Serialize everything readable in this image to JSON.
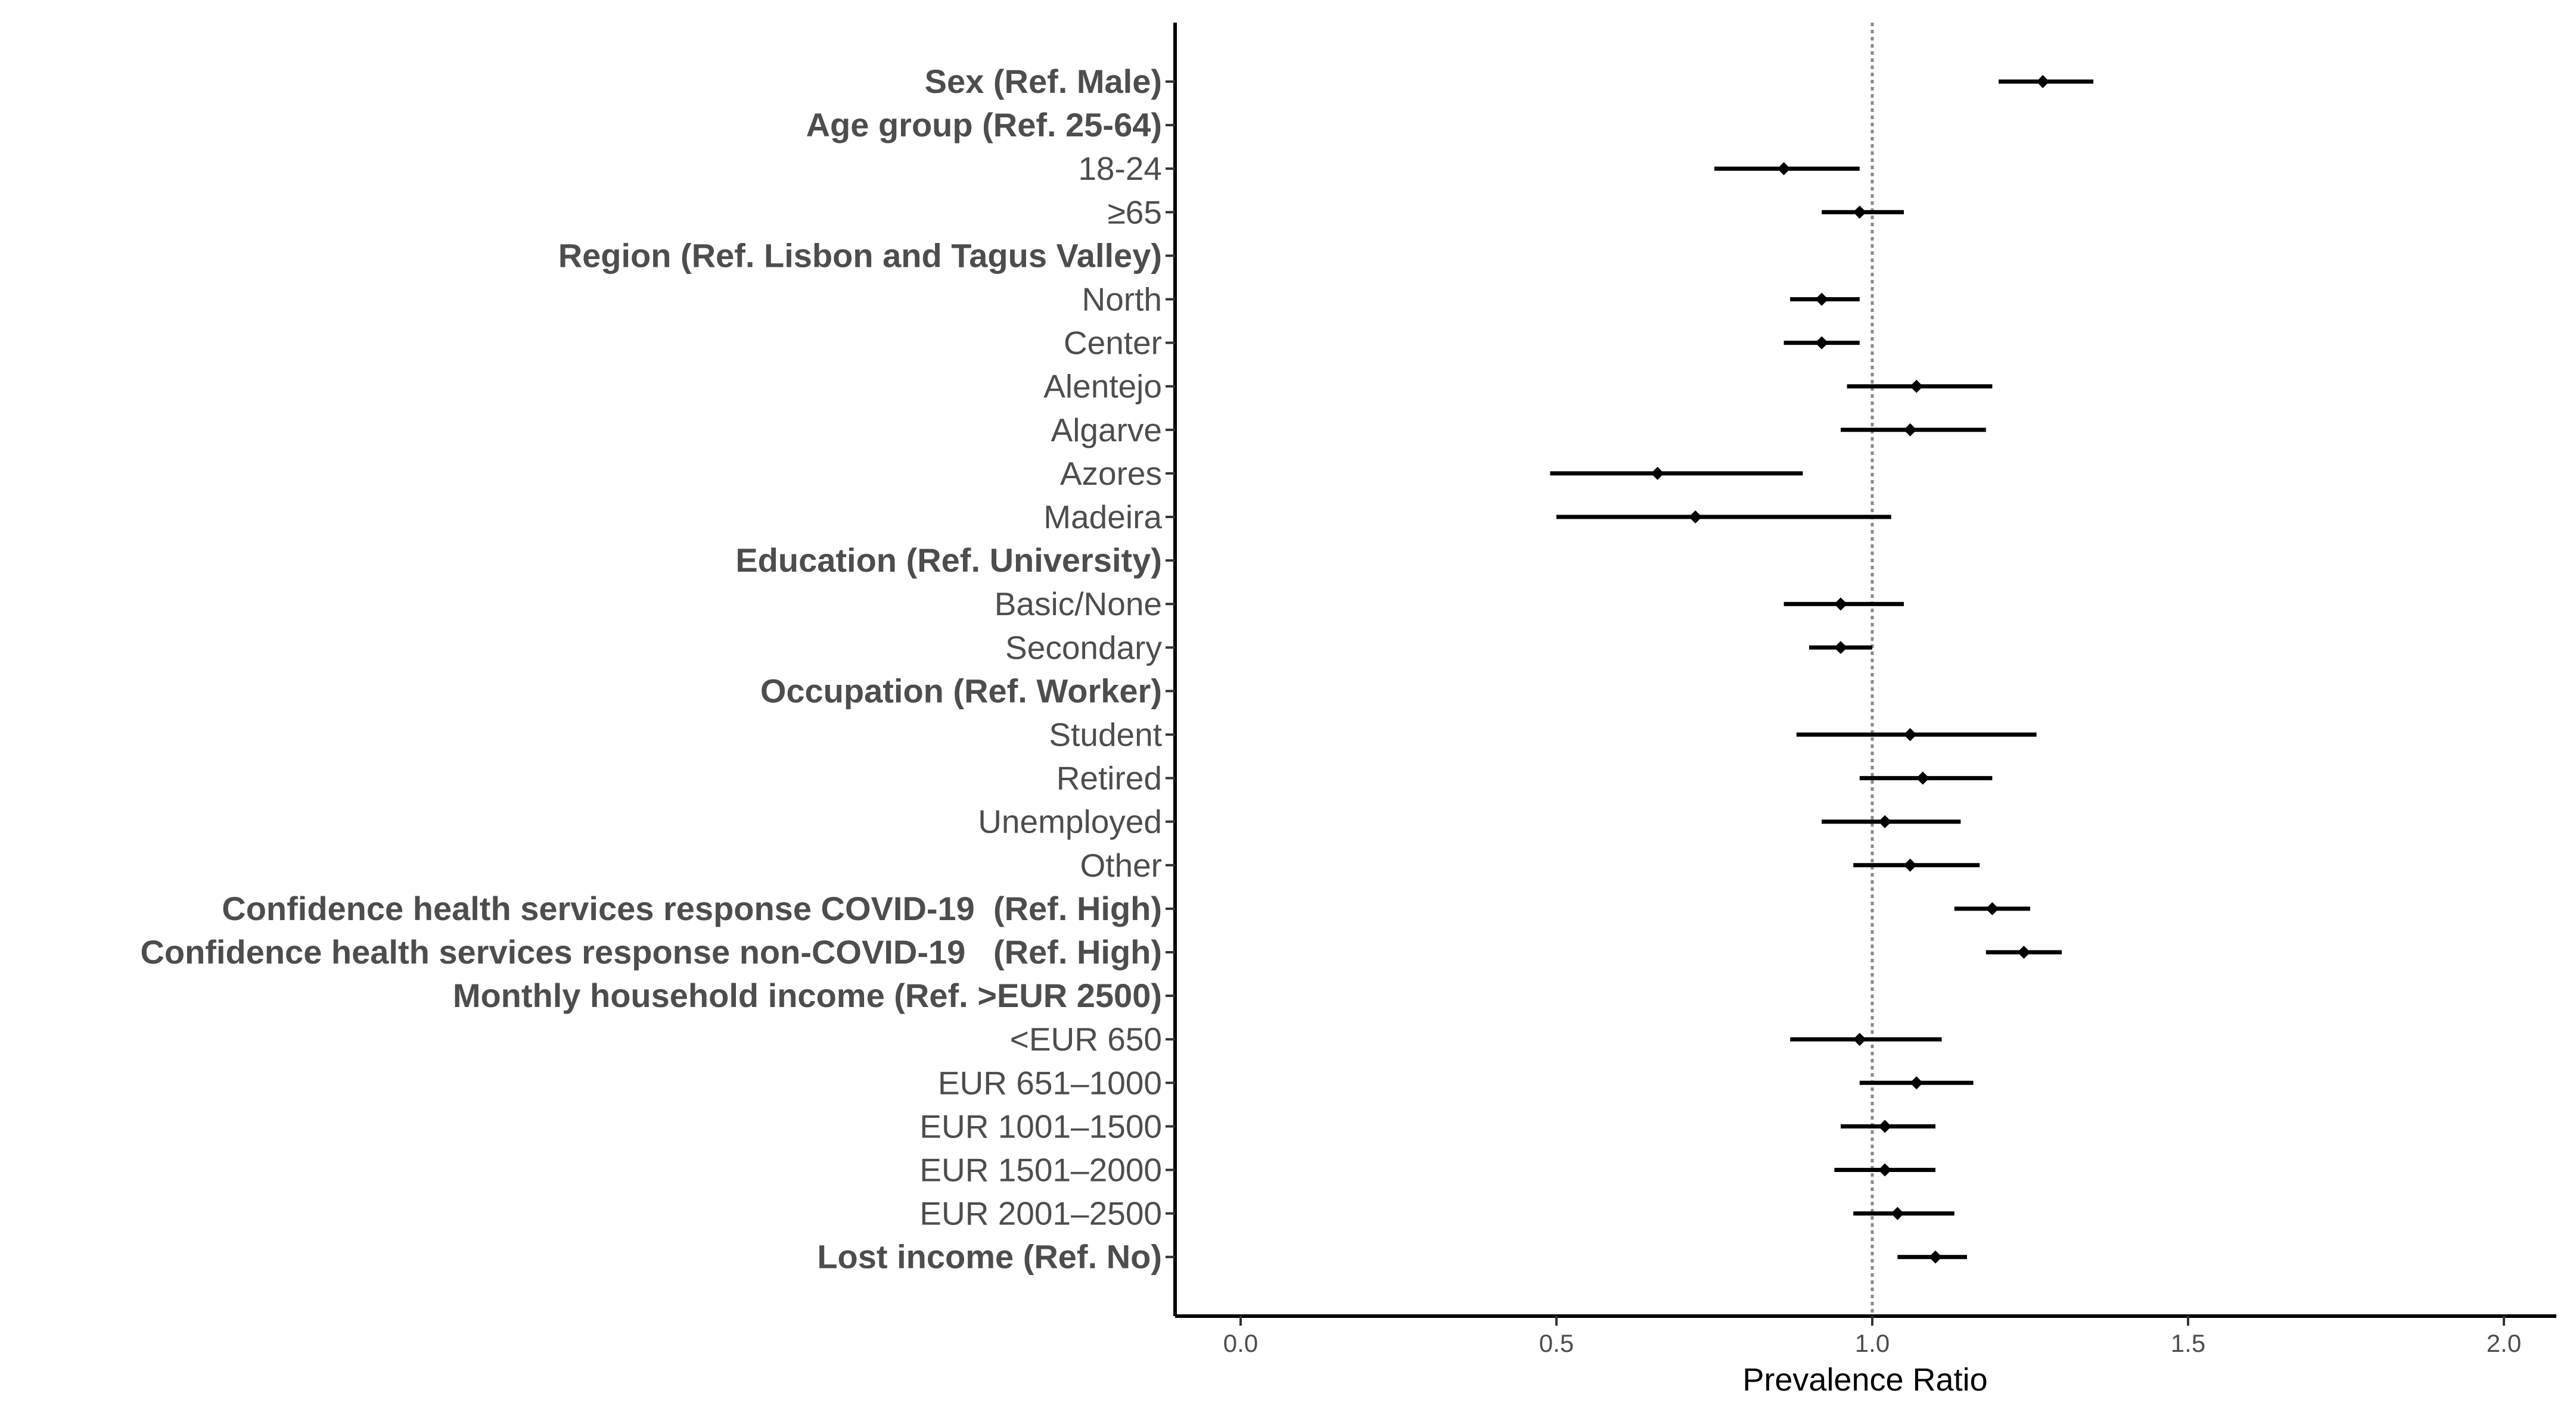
{
  "chart_data": {
    "type": "forest",
    "title": "",
    "xlabel": "Prevalence Ratio",
    "ylabel": "",
    "xlim": [
      -0.1,
      2.1
    ],
    "xticks": [
      "0.0",
      "0.5",
      "1.0",
      "1.5",
      "2.0"
    ],
    "reference_line": 1.0,
    "rows": [
      {
        "label": "Sex (Ref. Male)",
        "header": true,
        "pr": 1.27,
        "lo": 1.2,
        "hi": 1.35
      },
      {
        "label": "Age group (Ref. 25-64)",
        "header": true
      },
      {
        "label": "18-24",
        "header": false,
        "pr": 0.86,
        "lo": 0.75,
        "hi": 0.98
      },
      {
        "label": "≥65",
        "header": false,
        "pr": 0.98,
        "lo": 0.92,
        "hi": 1.05
      },
      {
        "label": "Region (Ref. Lisbon and Tagus Valley)",
        "header": true
      },
      {
        "label": "North",
        "header": false,
        "pr": 0.92,
        "lo": 0.87,
        "hi": 0.98
      },
      {
        "label": "Center",
        "header": false,
        "pr": 0.92,
        "lo": 0.86,
        "hi": 0.98
      },
      {
        "label": "Alentejo",
        "header": false,
        "pr": 1.07,
        "lo": 0.96,
        "hi": 1.19
      },
      {
        "label": "Algarve",
        "header": false,
        "pr": 1.06,
        "lo": 0.95,
        "hi": 1.18
      },
      {
        "label": "Azores",
        "header": false,
        "pr": 0.66,
        "lo": 0.49,
        "hi": 0.89
      },
      {
        "label": "Madeira",
        "header": false,
        "pr": 0.72,
        "lo": 0.5,
        "hi": 1.03
      },
      {
        "label": "Education (Ref. University)",
        "header": true
      },
      {
        "label": "Basic/None",
        "header": false,
        "pr": 0.95,
        "lo": 0.86,
        "hi": 1.05
      },
      {
        "label": "Secondary",
        "header": false,
        "pr": 0.95,
        "lo": 0.9,
        "hi": 1.0
      },
      {
        "label": "Occupation (Ref. Worker)",
        "header": true
      },
      {
        "label": "Student",
        "header": false,
        "pr": 1.06,
        "lo": 0.88,
        "hi": 1.26
      },
      {
        "label": "Retired",
        "header": false,
        "pr": 1.08,
        "lo": 0.98,
        "hi": 1.19
      },
      {
        "label": "Unemployed",
        "header": false,
        "pr": 1.02,
        "lo": 0.92,
        "hi": 1.14
      },
      {
        "label": "Other",
        "header": false,
        "pr": 1.06,
        "lo": 0.97,
        "hi": 1.17
      },
      {
        "label": "Confidence health services response COVID-19  (Ref. High)",
        "header": true,
        "pr": 1.19,
        "lo": 1.13,
        "hi": 1.25
      },
      {
        "label": "Confidence health services response non-COVID-19   (Ref. High)",
        "header": true,
        "pr": 1.24,
        "lo": 1.18,
        "hi": 1.3
      },
      {
        "label": "Monthly household income (Ref. >EUR 2500)",
        "header": true
      },
      {
        "label": "<EUR 650",
        "header": false,
        "pr": 0.98,
        "lo": 0.87,
        "hi": 1.11
      },
      {
        "label": "EUR 651–1000",
        "header": false,
        "pr": 1.07,
        "lo": 0.98,
        "hi": 1.16
      },
      {
        "label": "EUR 1001–1500",
        "header": false,
        "pr": 1.02,
        "lo": 0.95,
        "hi": 1.1
      },
      {
        "label": "EUR 1501–2000",
        "header": false,
        "pr": 1.02,
        "lo": 0.94,
        "hi": 1.1
      },
      {
        "label": "EUR 2001–2500",
        "header": false,
        "pr": 1.04,
        "lo": 0.97,
        "hi": 1.13
      },
      {
        "label": "Lost income (Ref. No)",
        "header": true,
        "pr": 1.1,
        "lo": 1.04,
        "hi": 1.15
      }
    ]
  }
}
